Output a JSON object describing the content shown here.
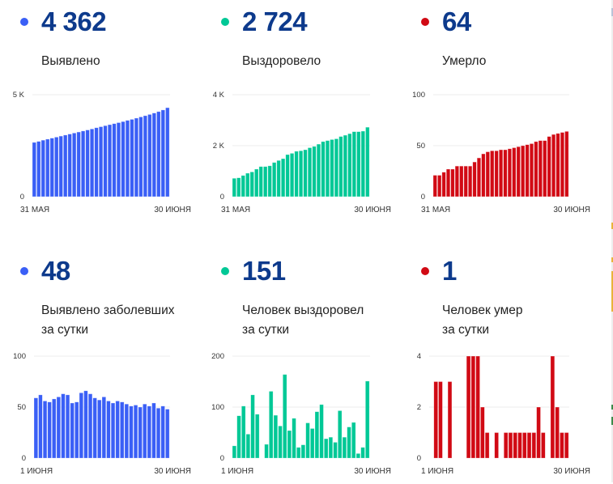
{
  "colors": {
    "detected": "#3a5ff6",
    "recovered": "#00c896",
    "died": "#d10a14",
    "number": "#0d3a8c"
  },
  "panels": [
    {
      "id": "detected-total",
      "value": "4 362",
      "label_lines": [
        "Выявлено"
      ],
      "color_key": "detected"
    },
    {
      "id": "recovered-total",
      "value": "2 724",
      "label_lines": [
        "Выздоровело"
      ],
      "color_key": "recovered"
    },
    {
      "id": "died-total",
      "value": "64",
      "label_lines": [
        "Умерло"
      ],
      "color_key": "died"
    },
    {
      "id": "detected-daily",
      "value": "48",
      "label_lines": [
        "Выявлено заболевших",
        "за сутки"
      ],
      "color_key": "detected"
    },
    {
      "id": "recovered-daily",
      "value": "151",
      "label_lines": [
        "Человек выздоровел",
        "за сутки"
      ],
      "color_key": "recovered"
    },
    {
      "id": "died-daily",
      "value": "1",
      "label_lines": [
        "Человек умер",
        "за сутки"
      ],
      "color_key": "died"
    }
  ],
  "chart_data": [
    {
      "type": "bar",
      "title": "Выявлено",
      "xlabel": "",
      "ylabel": "",
      "x_start_label": "31 МАЯ",
      "x_end_label": "30 ИЮНЯ",
      "ylim": [
        0,
        5000
      ],
      "yticks": [
        0,
        5000
      ],
      "ytick_labels": [
        "0",
        "5 K"
      ],
      "grid": true,
      "values": [
        2660,
        2710,
        2770,
        2820,
        2870,
        2920,
        2970,
        3020,
        3070,
        3120,
        3170,
        3220,
        3270,
        3320,
        3380,
        3430,
        3480,
        3530,
        3580,
        3630,
        3680,
        3740,
        3790,
        3850,
        3910,
        3970,
        4030,
        4100,
        4170,
        4250,
        4362
      ]
    },
    {
      "type": "bar",
      "title": "Выздоровело",
      "xlabel": "",
      "ylabel": "",
      "x_start_label": "31 МАЯ",
      "x_end_label": "30 ИЮНЯ",
      "ylim": [
        0,
        4000
      ],
      "yticks": [
        0,
        2000,
        4000
      ],
      "ytick_labels": [
        "0",
        "2 K",
        "4 K"
      ],
      "grid": true,
      "values": [
        720,
        740,
        830,
        920,
        970,
        1080,
        1180,
        1180,
        1210,
        1340,
        1420,
        1490,
        1650,
        1700,
        1780,
        1800,
        1840,
        1920,
        1970,
        2060,
        2160,
        2200,
        2240,
        2270,
        2360,
        2410,
        2470,
        2550,
        2550,
        2570,
        2724
      ]
    },
    {
      "type": "bar",
      "title": "Умерло",
      "xlabel": "",
      "ylabel": "",
      "x_start_label": "31 МАЯ",
      "x_end_label": "30 ИЮНЯ",
      "ylim": [
        0,
        100
      ],
      "yticks": [
        0,
        50,
        100
      ],
      "ytick_labels": [
        "0",
        "50",
        "100"
      ],
      "grid": true,
      "values": [
        21,
        21,
        24,
        27,
        27,
        30,
        30,
        30,
        30,
        34,
        38,
        42,
        44,
        45,
        45,
        46,
        46,
        47,
        48,
        49,
        50,
        51,
        52,
        54,
        55,
        55,
        59,
        61,
        62,
        63,
        64
      ]
    },
    {
      "type": "bar",
      "title": "Выявлено заболевших за сутки",
      "xlabel": "",
      "ylabel": "",
      "x_start_label": "1 ИЮНЯ",
      "x_end_label": "30 ИЮНЯ",
      "ylim": [
        0,
        100
      ],
      "yticks": [
        0,
        50,
        100
      ],
      "ytick_labels": [
        "0",
        "50",
        "100"
      ],
      "grid": true,
      "values": [
        59,
        62,
        56,
        55,
        58,
        60,
        63,
        62,
        54,
        55,
        64,
        66,
        63,
        59,
        57,
        60,
        56,
        54,
        56,
        55,
        53,
        51,
        52,
        50,
        53,
        51,
        54,
        49,
        51,
        48
      ]
    },
    {
      "type": "bar",
      "title": "Человек выздоровел за сутки",
      "xlabel": "",
      "ylabel": "",
      "x_start_label": "1 ИЮНЯ",
      "x_end_label": "30 ИЮНЯ",
      "ylim": [
        0,
        200
      ],
      "yticks": [
        0,
        100,
        200
      ],
      "ytick_labels": [
        "0",
        "100",
        "200"
      ],
      "grid": true,
      "values": [
        24,
        83,
        102,
        47,
        124,
        86,
        0,
        27,
        131,
        84,
        63,
        164,
        54,
        78,
        21,
        26,
        69,
        58,
        91,
        105,
        38,
        41,
        31,
        93,
        41,
        61,
        70,
        9,
        21,
        151
      ]
    },
    {
      "type": "bar",
      "title": "Человек умер за сутки",
      "xlabel": "",
      "ylabel": "",
      "x_start_label": "1 ИЮНЯ",
      "x_end_label": "30 ИЮНЯ",
      "ylim": [
        0,
        4
      ],
      "yticks": [
        0,
        2,
        4
      ],
      "ytick_labels": [
        "0",
        "2",
        "4"
      ],
      "grid": true,
      "values": [
        0,
        3,
        3,
        0,
        3,
        0,
        0,
        0,
        4,
        4,
        4,
        2,
        1,
        0,
        1,
        0,
        1,
        1,
        1,
        1,
        1,
        1,
        1,
        2,
        1,
        0,
        4,
        2,
        1,
        1
      ]
    }
  ]
}
